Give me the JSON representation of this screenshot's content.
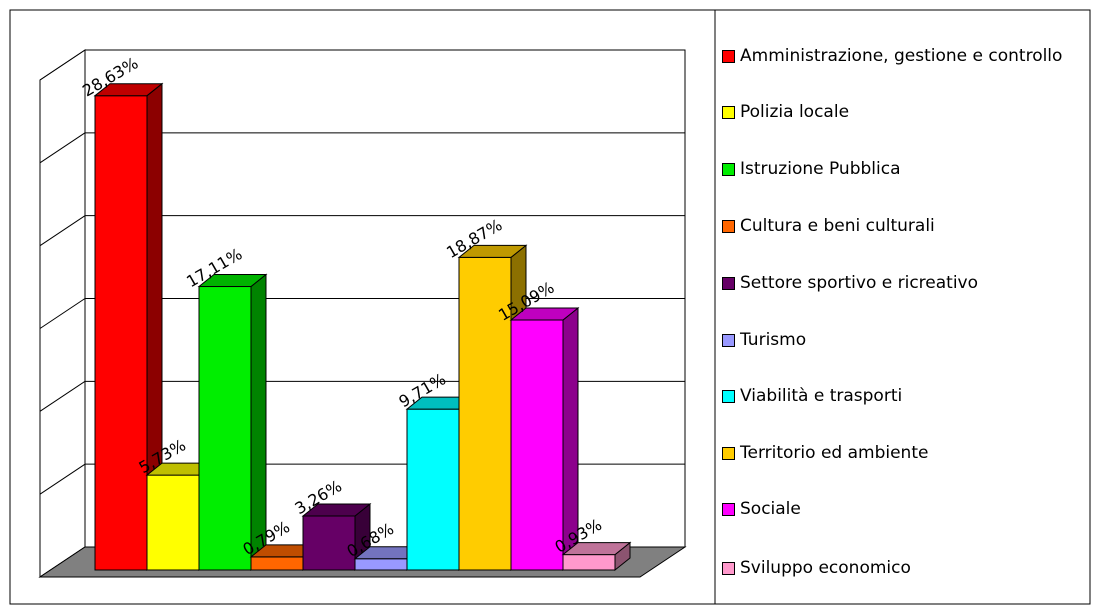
{
  "chart_data": {
    "type": "bar",
    "categories": [
      "Amministrazione, gestione e controllo",
      "Polizia locale",
      "Istruzione Pubblica",
      "Cultura e beni culturali",
      "Settore sportivo e ricreativo",
      "Turismo",
      "Viabilità e trasporti",
      "Territorio ed ambiente",
      "Sociale",
      "Sviluppo economico"
    ],
    "values": [
      28.63,
      5.73,
      17.11,
      0.79,
      3.26,
      0.68,
      9.71,
      18.87,
      15.09,
      0.93
    ],
    "value_labels": [
      "28,63%",
      "5,73%",
      "17,11%",
      "0,79%",
      "3,26%",
      "0,68%",
      "9,71%",
      "18,87%",
      "15,09%",
      "0,93%"
    ],
    "colors": [
      "#ff0000",
      "#ffff00",
      "#00ee00",
      "#ff6600",
      "#660066",
      "#9999ff",
      "#00ffff",
      "#ffcc00",
      "#ff00ff",
      "#ff99cc"
    ],
    "ylim": [
      0,
      30
    ],
    "yticks": [
      0,
      5,
      10,
      15,
      20,
      25,
      30
    ],
    "grid": true,
    "legend": "right"
  }
}
